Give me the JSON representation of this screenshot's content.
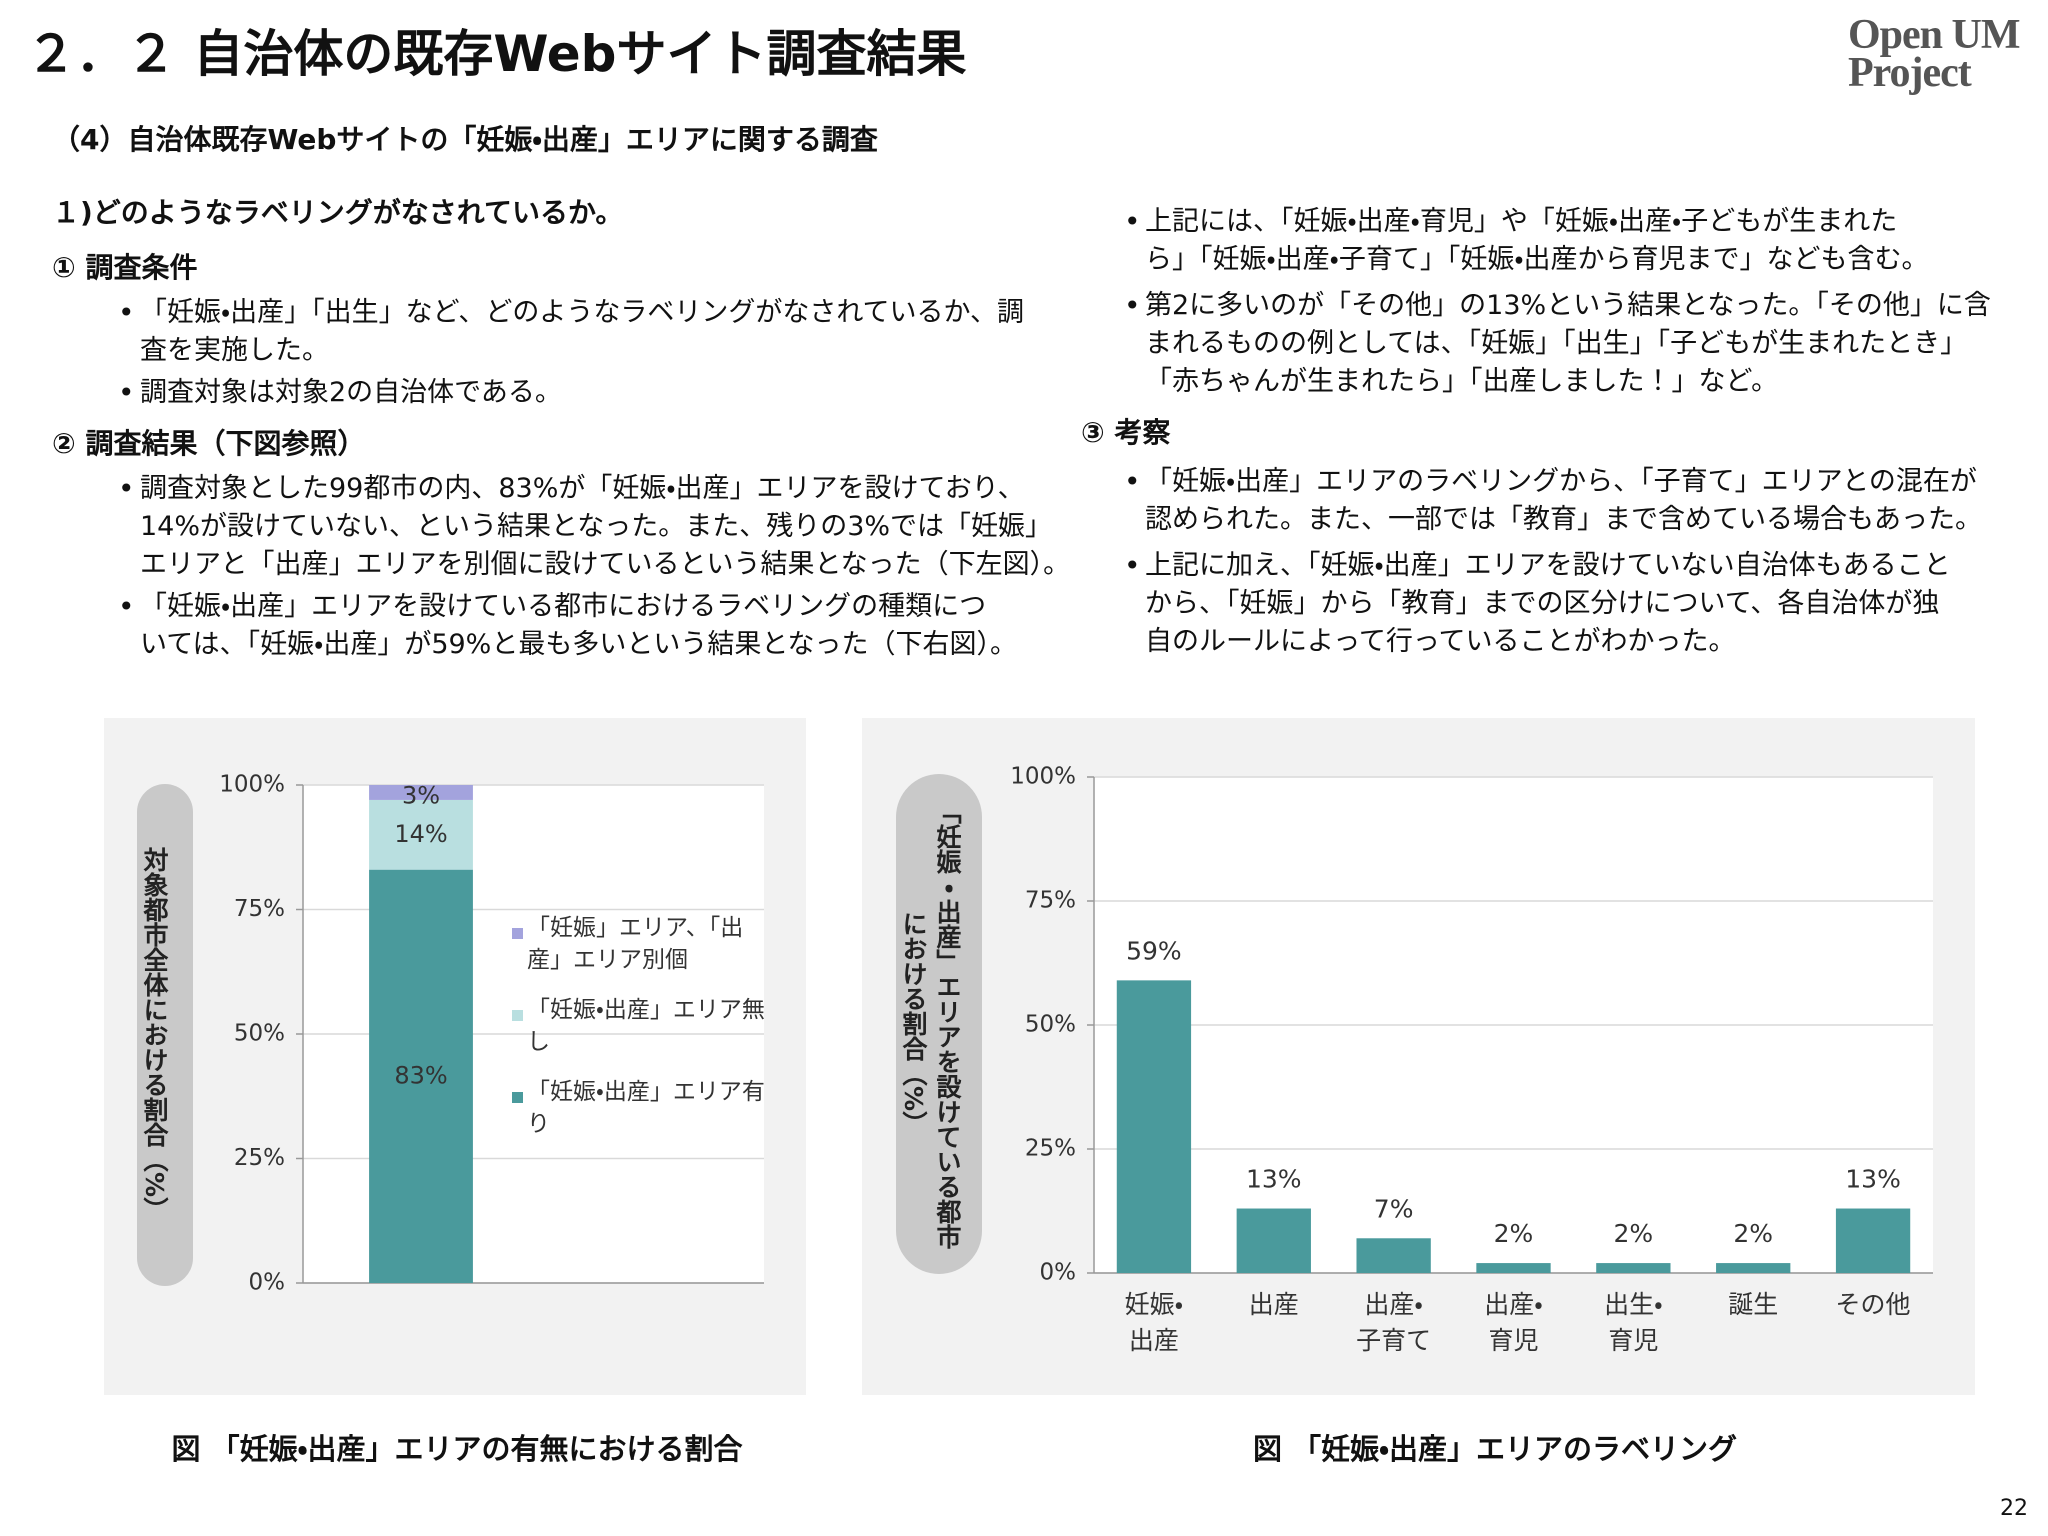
{
  "header": {
    "title": "２．２ 自治体の既存Webサイト調査結果",
    "logo": [
      "Open UM",
      "Project"
    ],
    "subtitle": "（4）自治体既存Webサイトの「妊娠・出産」エリアに関する調査"
  },
  "left_column": {
    "heading": "１)どのようなラベリングがなされているか。",
    "sections": [
      {
        "heading": "① 調査条件",
        "bullets": [
          [
            "「妊娠・出産」「出生」など、どのようなラベリングがなされているか、調",
            "査を実施した。"
          ],
          [
            "調査対象は対象2の自治体である。"
          ]
        ]
      },
      {
        "heading": "② 調査結果（下図参照）",
        "bullets": [
          [
            "調査対象とした99都市の内、83%が「妊娠・出産」エリアを設けており、",
            "14%が設けていない、という結果となった。また、残りの3%では「妊娠」",
            "エリアと「出産」エリアを別個に設けているという結果となった（下左図）。"
          ],
          [
            "「妊娠・出産」エリアを設けている都市におけるラベリングの種類につ",
            "いては、「妊娠・出産」が59%と最も多いという結果となった（下右図）。"
          ]
        ]
      }
    ]
  },
  "right_column": {
    "bullets": [
      [
        "上記には、「妊娠・出産・育児」や「妊娠・出産・子どもが生まれた",
        "ら」「妊娠・出産・子育て」「妊娠・出産から育児まで」なども含む。"
      ],
      [
        "第2に多いのが「その他」の13%という結果となった。「その他」に含",
        "まれるものの例としては、「妊娠」「出生」「子どもが生まれたとき」",
        "「赤ちゃんが生まれたら」「出産しました！」など。"
      ]
    ],
    "sections": [
      {
        "heading": "③ 考察",
        "bullets": [
          [
            "「妊娠・出産」エリアのラベリングから、「子育て」エリアとの混在が",
            "認められた。また、一部では「教育」まで含めている場合もあった。"
          ],
          [
            "上記に加え、「妊娠・出産」エリアを設けていない自治体もあること",
            "から、「妊娠」から「教育」までの区分けについて、各自治体が独",
            "自のルールによって行っていることがわかった。"
          ]
        ]
      }
    ]
  },
  "chart_data": [
    {
      "type": "bar",
      "stacked": true,
      "caption": "図 「妊娠・出産」エリアの有無における割合",
      "ylabel": "対象都市全体における割合（%）",
      "categories": [
        null
      ],
      "series": [
        {
          "name": "「妊娠・出産」エリア有り",
          "color": "#4a9a9c",
          "values": [
            83
          ],
          "value_labels": [
            "83%"
          ]
        },
        {
          "name": "「妊娠・出産」エリア無し",
          "color": "#b9dfe0",
          "values": [
            14
          ],
          "value_labels": [
            "14%"
          ]
        },
        {
          "name": "「妊娠」エリア、「出産」エリア別個",
          "color": "#a3a3dd",
          "values": [
            3
          ],
          "value_labels": [
            "3%"
          ]
        }
      ],
      "ylim": [
        0,
        100
      ],
      "yticks": [
        {
          "value": 0,
          "label": "0%"
        },
        {
          "value": 25,
          "label": "25%"
        },
        {
          "value": 50,
          "label": "50%"
        },
        {
          "value": 75,
          "label": "75%"
        },
        {
          "value": 100,
          "label": "100%"
        }
      ],
      "grid": true,
      "legend": "right"
    },
    {
      "type": "bar",
      "caption": "図 「妊娠・出産」エリアのラベリング",
      "ylabel": "「妊娠・出産」エリアを設けている都市における割合（%）",
      "categories": [
        "妊娠・出産",
        "出産",
        "出産・子育て",
        "出産・育児",
        "出生・育児",
        "誕生",
        "その他"
      ],
      "values": [
        59,
        13,
        7,
        2,
        2,
        2,
        13
      ],
      "value_labels": [
        "59%",
        "13%",
        "7%",
        "2%",
        "2%",
        "2%",
        "13%"
      ],
      "color": "#4a9a9c",
      "ylim": [
        0,
        100
      ],
      "yticks": [
        {
          "value": 0,
          "label": "0%"
        },
        {
          "value": 25,
          "label": "25%"
        },
        {
          "value": 50,
          "label": "50%"
        },
        {
          "value": 75,
          "label": "75%"
        },
        {
          "value": 100,
          "label": "100%"
        }
      ],
      "grid": true
    }
  ],
  "page_number": "22"
}
